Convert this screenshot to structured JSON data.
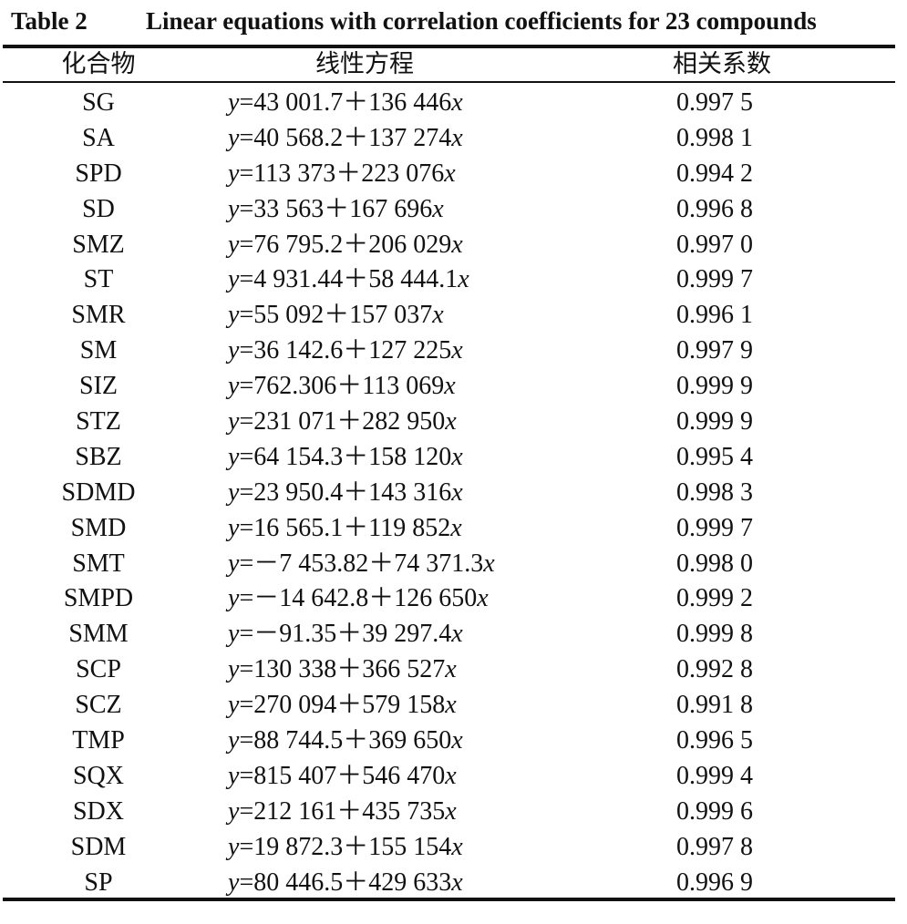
{
  "caption": {
    "label": "Table 2",
    "title": "Linear equations with correlation coefficients for 23 compounds"
  },
  "headers": {
    "compound": "化合物",
    "equation": "线性方程",
    "coefficient": "相关系数"
  },
  "rows": [
    {
      "compound": "SG",
      "equation": "=43 001.7＋136 446",
      "coefficient": "0.997 5"
    },
    {
      "compound": "SA",
      "equation": "=40 568.2＋137 274",
      "coefficient": "0.998 1"
    },
    {
      "compound": "SPD",
      "equation": "=113 373＋223 076",
      "coefficient": "0.994 2"
    },
    {
      "compound": "SD",
      "equation": "=33 563＋167 696",
      "coefficient": "0.996 8"
    },
    {
      "compound": "SMZ",
      "equation": "=76 795.2＋206 029",
      "coefficient": "0.997 0"
    },
    {
      "compound": "ST",
      "equation": "=4 931.44＋58 444.1",
      "coefficient": "0.999 7"
    },
    {
      "compound": "SMR",
      "equation": "=55 092＋157 037",
      "coefficient": "0.996 1"
    },
    {
      "compound": "SM",
      "equation": "=36 142.6＋127 225",
      "coefficient": "0.997 9"
    },
    {
      "compound": "SIZ",
      "equation": "=762.306＋113 069",
      "coefficient": "0.999 9"
    },
    {
      "compound": "STZ",
      "equation": "=231 071＋282 950",
      "coefficient": "0.999 9"
    },
    {
      "compound": "SBZ",
      "equation": "=64 154.3＋158 120",
      "coefficient": "0.995 4"
    },
    {
      "compound": "SDMD",
      "equation": "=23 950.4＋143 316",
      "coefficient": "0.998 3"
    },
    {
      "compound": "SMD",
      "equation": "=16 565.1＋119 852",
      "coefficient": "0.999 7"
    },
    {
      "compound": "SMT",
      "equation": "=－7 453.82＋74 371.3",
      "coefficient": "0.998 0"
    },
    {
      "compound": "SMPD",
      "equation": "=－14 642.8＋126 650",
      "coefficient": "0.999 2"
    },
    {
      "compound": "SMM",
      "equation": "=－91.35＋39 297.4",
      "coefficient": "0.999 8"
    },
    {
      "compound": "SCP",
      "equation": "=130 338＋366 527",
      "coefficient": "0.992 8"
    },
    {
      "compound": "SCZ",
      "equation": "=270 094＋579 158",
      "coefficient": "0.991 8"
    },
    {
      "compound": "TMP",
      "equation": "=88 744.5＋369 650",
      "coefficient": "0.996 5"
    },
    {
      "compound": "SQX",
      "equation": "=815 407＋546 470",
      "coefficient": "0.999 4"
    },
    {
      "compound": "SDX",
      "equation": "=212 161＋435 735",
      "coefficient": "0.999 6"
    },
    {
      "compound": "SDM",
      "equation": "=19 872.3＋155 154",
      "coefficient": "0.997 8"
    },
    {
      "compound": "SP",
      "equation": "=80 446.5＋429 633",
      "coefficient": "0.996 9"
    }
  ],
  "variables": {
    "y": "y",
    "x": "x"
  }
}
